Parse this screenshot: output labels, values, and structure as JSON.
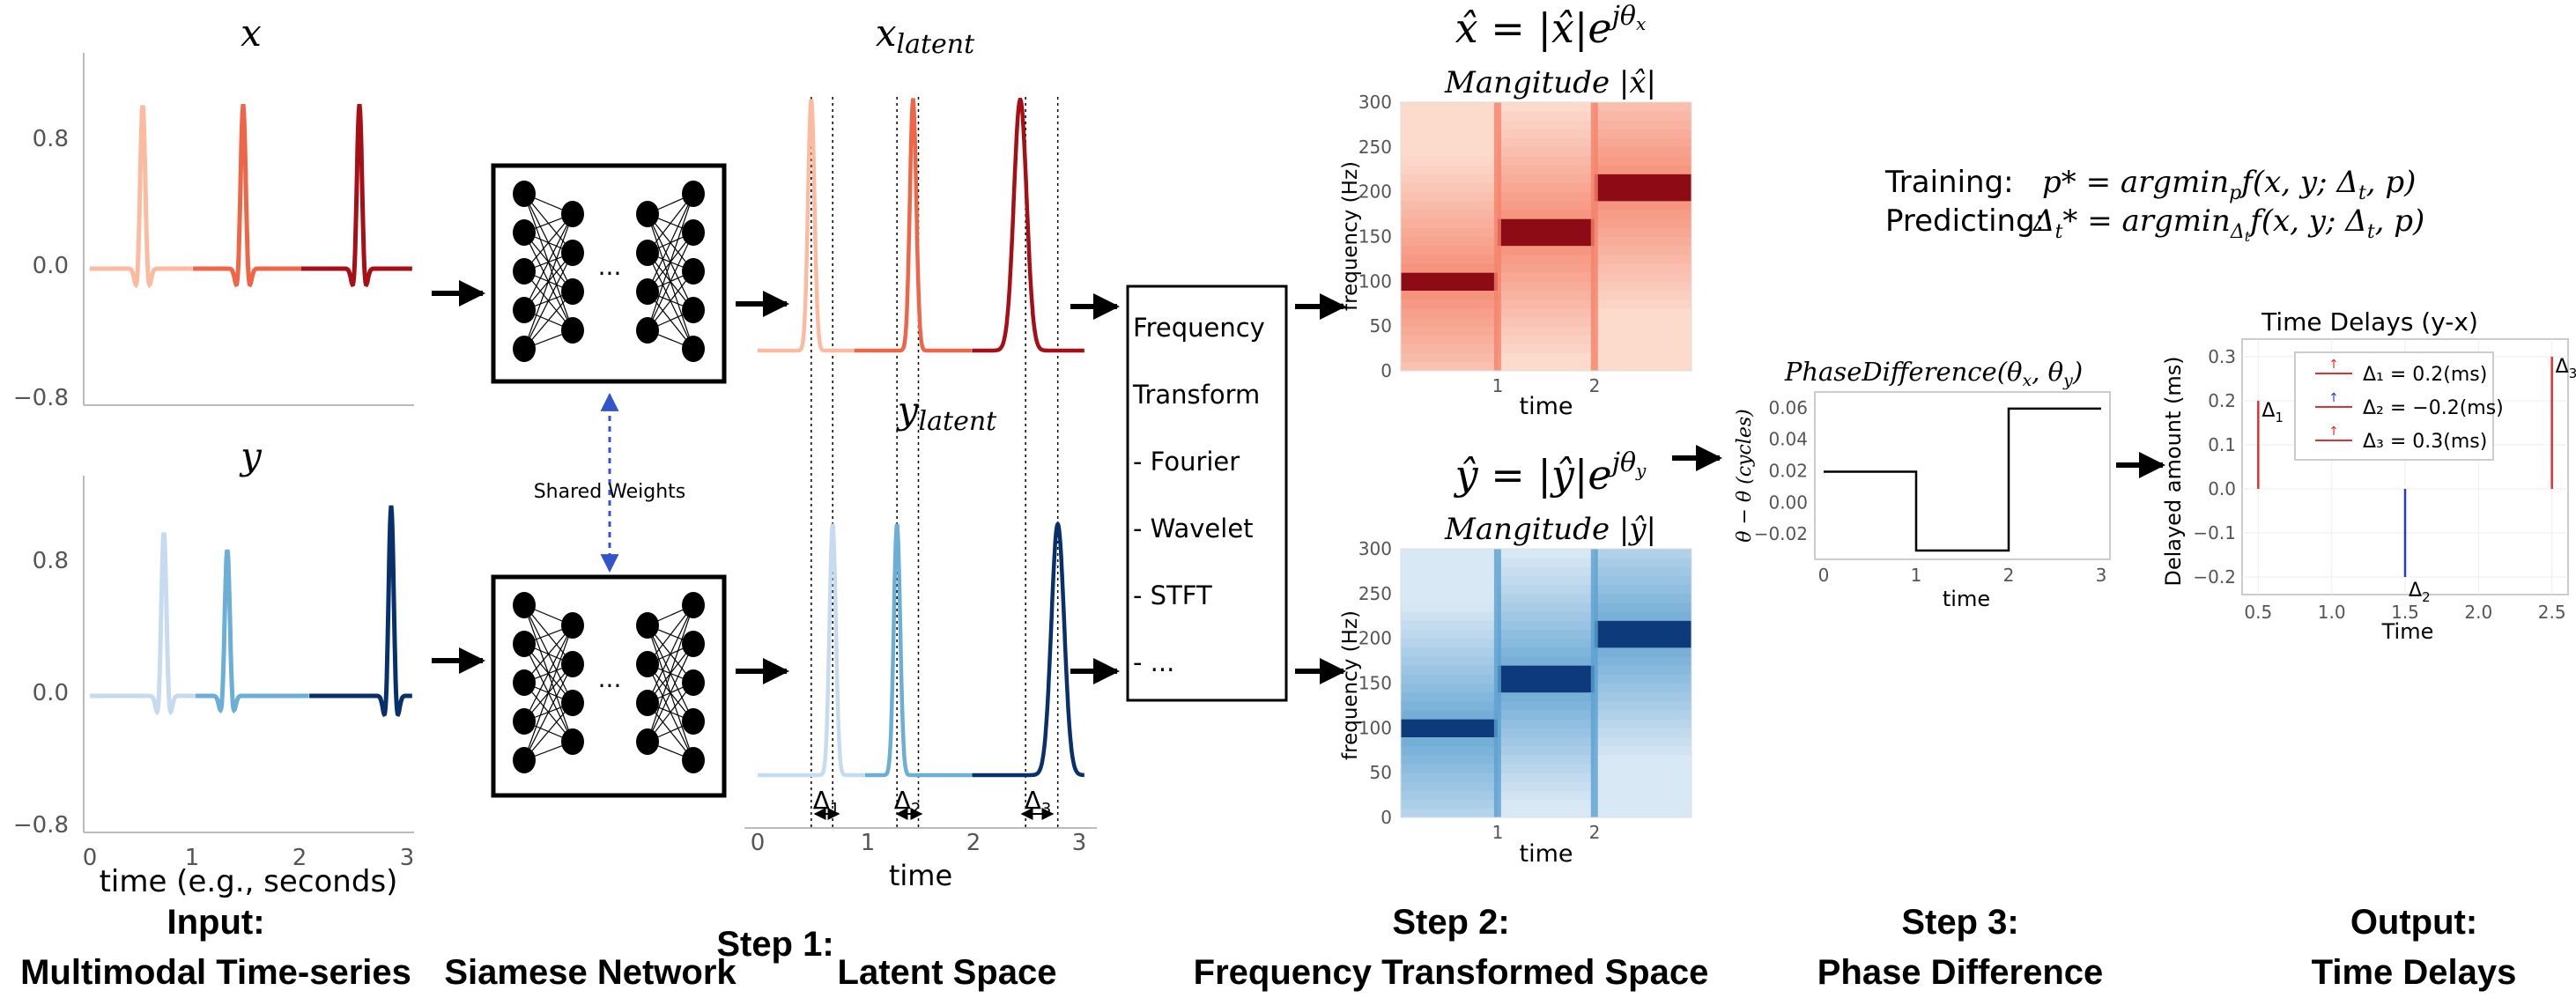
{
  "input": {
    "x_title": "x",
    "y_title": "y",
    "x_ticks_y": [
      "0.8",
      "0.0",
      "−0.8"
    ],
    "y_ticks_y": [
      "0.8",
      "0.0",
      "−0.8"
    ],
    "ticks_x": [
      "0",
      "1",
      "2",
      "3"
    ],
    "xlabel": "time (e.g., seconds)"
  },
  "network": {
    "dots": "···",
    "shared_label": "Shared Weights"
  },
  "latent": {
    "x_title": "x",
    "x_sub": "latent",
    "y_title": "y",
    "y_sub": "latent",
    "ticks_x": [
      "0",
      "1",
      "2",
      "3"
    ],
    "xlabel": "time",
    "deltas": [
      "Δ",
      "Δ",
      "Δ"
    ],
    "delta_subs": [
      "1",
      "2",
      "3"
    ]
  },
  "transform": {
    "lines": [
      "Frequency",
      "Transform",
      "- Fourier",
      "- Wavelet",
      "- STFT",
      "-    ..."
    ]
  },
  "spectrogram": {
    "x_eq": "x̂ = |x̂|e",
    "x_exp": "jθ",
    "x_exp_sub": "x",
    "x_mag_title": "Mangitude |x̂|",
    "y_eq": "ŷ = |ŷ|e",
    "y_exp": "jθ",
    "y_exp_sub": "y",
    "y_mag_title": "Mangitude |ŷ|",
    "ticks_y": [
      "300",
      "250",
      "200",
      "150",
      "100",
      "50",
      "0"
    ],
    "ticks_x": [
      "1",
      "2"
    ],
    "ylabel": "frequency (Hz)",
    "xlabel": "time",
    "colors": {
      "red_light": "#fcdacc",
      "red_mid": "#f4826a",
      "red_dark": "#8d0b14",
      "blue_light": "#d9e8f5",
      "blue_mid": "#5ba0d0",
      "blue_dark": "#0c3a7a"
    }
  },
  "formulas": {
    "training_label": "Training:",
    "training_expr": "p* = argmin",
    "training_sub": "p",
    "training_tail": "f(x, y; Δ",
    "training_tail_sub": "t",
    "training_end": ", p)",
    "predict_label": "Predicting:",
    "predict_expr": "Δ",
    "predict_sub": "t",
    "predict_mid": "* = argmin",
    "predict_mid_sub": "Δ",
    "predict_mid_subsub": "t",
    "predict_tail": "f(x, y; Δ",
    "predict_tail_sub": "t",
    "predict_end": ", p)"
  },
  "phase": {
    "title": "PhaseDifference(θ",
    "title_a_sub": "x",
    "title_mid": ", θ",
    "title_b_sub": "y",
    "title_end": ")",
    "ylabel": "θ  − θ  (cycles)",
    "ticks_y": [
      "0.06",
      "0.04",
      "0.02",
      "0.00",
      "−0.02"
    ],
    "ticks_x": [
      "0",
      "1",
      "2",
      "3"
    ],
    "xlabel": "time"
  },
  "delays": {
    "title": "Time Delays (y-x)",
    "ylabel": "Delayed amount (ms)",
    "ticks_y": [
      "0.3",
      "0.2",
      "0.1",
      "0.0",
      "−0.1",
      "−0.2"
    ],
    "ticks_x": [
      "0.5",
      "1.0",
      "1.5",
      "2.0",
      "2.5"
    ],
    "xlabel": "Time",
    "legend": [
      "Δ₁ = 0.2(ms)",
      "Δ₂ = −0.2(ms)",
      "Δ₃ = 0.3(ms)"
    ],
    "marks": [
      "Δ",
      "Δ",
      "Δ"
    ],
    "mark_subs": [
      "1",
      "2",
      "3"
    ]
  },
  "captions": {
    "input_l1": "Input:",
    "input_l2": "Multimodal Time-series",
    "step1_a": "Step 1:",
    "siamese": "Siamese Network",
    "latent_space": "Latent Space",
    "step2_l1": "Step 2:",
    "step2_l2": "Frequency Transformed Space",
    "step3_l1": "Step 3:",
    "step3_l2": "Phase Difference",
    "output_l1": "Output:",
    "output_l2": "Time Delays"
  },
  "chart_data": [
    {
      "type": "line",
      "panel": "input-x",
      "title": "x",
      "xlabel": "time (e.g., seconds)",
      "xlim": [
        0,
        3.2
      ],
      "ylim": [
        -0.85,
        1.0
      ],
      "series": [
        {
          "pulse_center": 0.5,
          "peak": 0.95,
          "color": "#fcbba1"
        },
        {
          "pulse_center": 1.45,
          "peak": 0.95,
          "color": "#ef6548"
        },
        {
          "pulse_center": 2.55,
          "peak": 0.95,
          "color": "#a50f15"
        }
      ]
    },
    {
      "type": "line",
      "panel": "input-y",
      "title": "y",
      "xlim": [
        0,
        3.2
      ],
      "ylim": [
        -0.85,
        1.15
      ],
      "series": [
        {
          "pulse_center": 0.7,
          "peak": 0.95,
          "color": "#c6dbef"
        },
        {
          "pulse_center": 1.3,
          "peak": 0.85,
          "color": "#6baed6"
        },
        {
          "pulse_center": 2.85,
          "peak": 1.1,
          "color": "#08306b"
        }
      ]
    },
    {
      "type": "scatter",
      "panel": "time-delays",
      "title": "Time Delays (y-x)",
      "xlabel": "Time",
      "ylabel": "Delayed amount (ms)",
      "xlim": [
        0.45,
        2.55
      ],
      "ylim": [
        -0.22,
        0.32
      ],
      "x": [
        0.5,
        1.5,
        2.5
      ],
      "values": [
        0.2,
        -0.2,
        0.3
      ]
    },
    {
      "type": "line",
      "panel": "phase-difference",
      "xlabel": "time",
      "xlim": [
        0,
        3
      ],
      "ylim": [
        -0.03,
        0.065
      ],
      "x": [
        0,
        1,
        1,
        2,
        2,
        3
      ],
      "values": [
        0.02,
        0.02,
        -0.03,
        -0.03,
        0.06,
        0.06
      ]
    }
  ]
}
